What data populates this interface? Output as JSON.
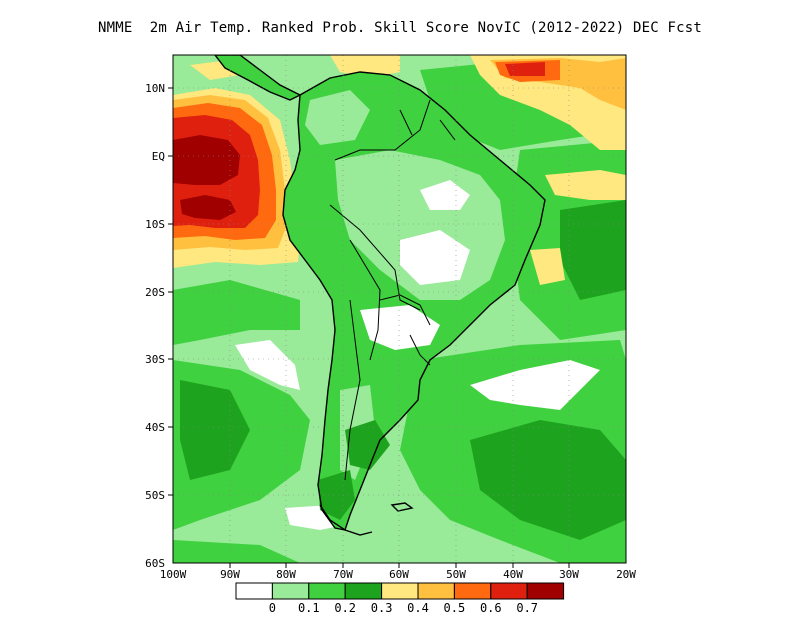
{
  "title": "NMME  2m Air Temp. Ranked Prob. Skill Score NovIC (2012-2022) DEC Fcst",
  "lat_labels": [
    "10N",
    "EQ",
    "10S",
    "20S",
    "30S",
    "40S",
    "50S",
    "60S"
  ],
  "lon_labels": [
    "100W",
    "90W",
    "80W",
    "70W",
    "60W",
    "50W",
    "40W",
    "30W",
    "20W"
  ],
  "colorbar": {
    "colors": [
      "#ffffff",
      "#99ea99",
      "#3fd13f",
      "#1ea31e",
      "#ffe880",
      "#ffc040",
      "#ff6a10",
      "#e0200f",
      "#a00000"
    ],
    "labels": [
      "0",
      "0.1",
      "0.2",
      "0.3",
      "0.4",
      "0.5",
      "0.6",
      "0.7"
    ]
  },
  "colors": {
    "ocean_base": "#99ea99",
    "land_base": "#3fd13f",
    "coastline": "#000000",
    "frame": "#000000"
  }
}
